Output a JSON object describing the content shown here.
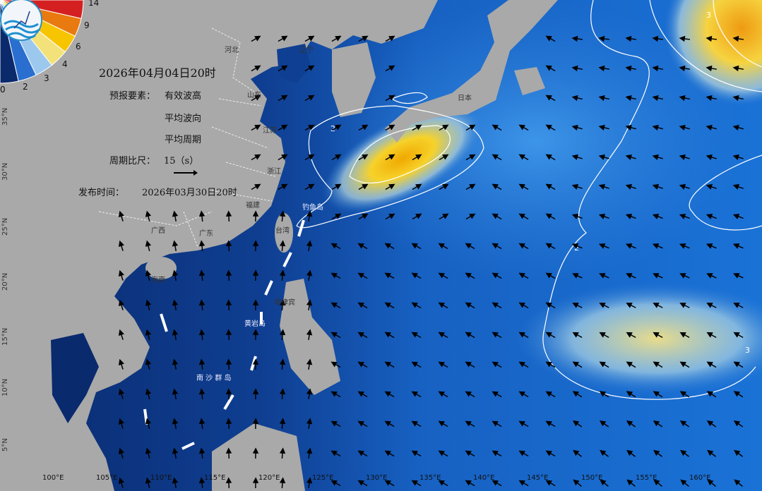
{
  "header": {
    "forecast_time": "2026年04月04日20时",
    "element_label": "预报要素：",
    "elements": [
      "有效波高",
      "平均波向",
      "平均周期"
    ],
    "period_scale_label": "周期比尺：",
    "period_scale_value": "15（s）",
    "issue_label": "发布时间：",
    "issue_time": "2026年03月30日20时"
  },
  "legend": {
    "logo": "NMEFC",
    "ticks": [
      "0",
      "2",
      "3",
      "4",
      "6",
      "9",
      "14"
    ],
    "colors": [
      "#0b2a6b",
      "#2a6fcf",
      "#9cc8ee",
      "#f3e27a",
      "#f7c400",
      "#e97a10",
      "#d42020"
    ]
  },
  "places": {
    "hebei": "河北",
    "liaoning": "辽宁",
    "shandong": "山东",
    "jiangsu": "江苏",
    "zhejiang": "浙江",
    "fujian": "福建",
    "guangxi": "广西",
    "guangdong": "广东",
    "hainan": "海南",
    "taiwan": "台湾",
    "japan": "日本",
    "diaoyudao": "钓鱼岛",
    "huangyandao": "黄岩岛",
    "philippines": "菲律宾",
    "nansha": "南 沙 群 岛"
  },
  "axes": {
    "latitudes": [
      "35°N",
      "30°N",
      "25°N",
      "20°N",
      "15°N",
      "10°N",
      "5°N"
    ],
    "longitudes": [
      "100°E",
      "105°E",
      "110°E",
      "115°E",
      "120°E",
      "125°E",
      "130°E",
      "135°E",
      "140°E",
      "145°E",
      "150°E",
      "155°E",
      "160°E"
    ]
  },
  "contour_labels": [
    "2",
    "3",
    "2",
    "3"
  ]
}
